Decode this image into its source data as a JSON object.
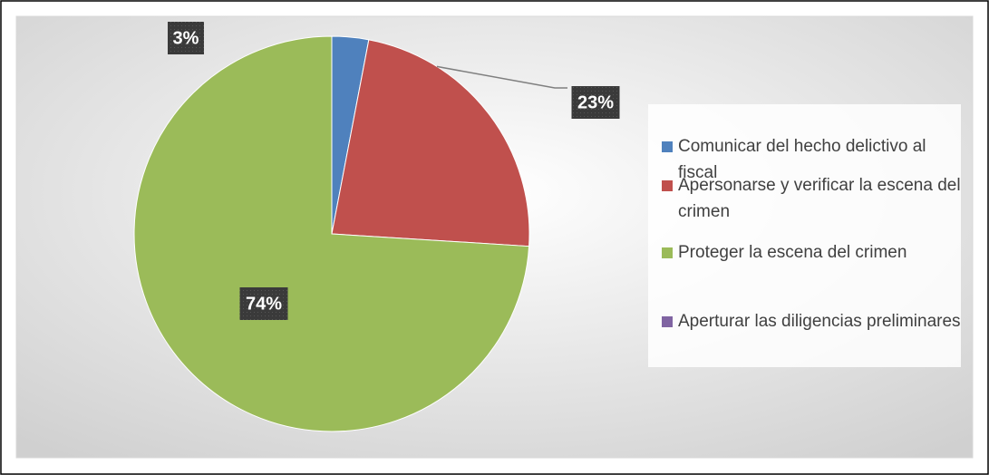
{
  "chart_data": {
    "type": "pie",
    "categories": [
      "Comunicar del hecho delictivo al fiscal",
      "Apersonarse y verificar la escena del crimen",
      "Proteger la escena del crimen",
      "Aperturar las diligencias preliminares"
    ],
    "values": [
      3,
      23,
      74,
      0
    ],
    "value_labels": [
      "3%",
      "23%",
      "74%",
      null
    ],
    "colors": [
      "#4f81bd",
      "#c0504d",
      "#9bbb59",
      "#8064a2"
    ],
    "legend": "right"
  }
}
